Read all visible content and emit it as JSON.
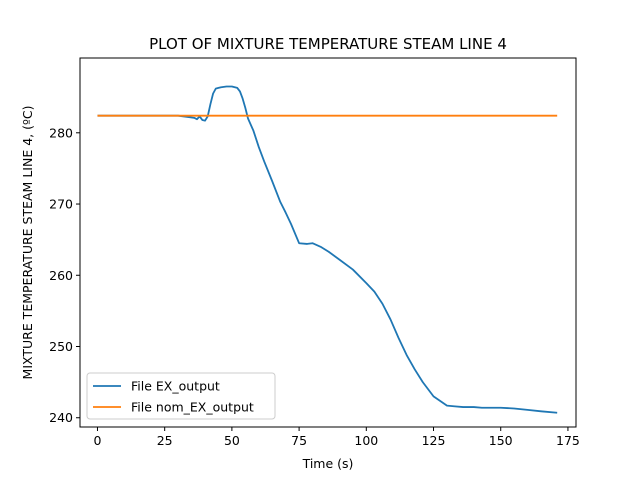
{
  "chart_data": {
    "type": "line",
    "title": "PLOT OF MIXTURE TEMPERATURE STEAM LINE 4",
    "xlabel": "Time (s)",
    "ylabel": "MIXTURE TEMPERATURE STEAM LINE 4, (ºC)",
    "xlim": [
      -6.5,
      178
    ],
    "ylim": [
      238.7,
      290.5
    ],
    "xticks": [
      0,
      25,
      50,
      75,
      100,
      125,
      150,
      175
    ],
    "yticks": [
      240,
      250,
      260,
      270,
      280
    ],
    "grid": false,
    "legend_position": "lower-left",
    "series": [
      {
        "name": "File EX_output",
        "color": "#1f77b4",
        "x": [
          0,
          10,
          20,
          30,
          34,
          36,
          37,
          38,
          39,
          40,
          41,
          42,
          43,
          44,
          45,
          46,
          48,
          50,
          52,
          53,
          54,
          55,
          56,
          58,
          60,
          62,
          65,
          68,
          70,
          72,
          75,
          78,
          80,
          83,
          86,
          90,
          95,
          100,
          103,
          106,
          109,
          112,
          115,
          118,
          121,
          125,
          130,
          133,
          136,
          140,
          143,
          146,
          150,
          155,
          160,
          165,
          171
        ],
        "y": [
          282.4,
          282.4,
          282.4,
          282.4,
          282.2,
          282.1,
          281.9,
          282.3,
          281.8,
          281.7,
          282.3,
          284.0,
          285.5,
          286.2,
          286.3,
          286.4,
          286.5,
          286.5,
          286.3,
          285.8,
          284.8,
          283.5,
          282.0,
          280.3,
          278.0,
          276.0,
          273.2,
          270.3,
          268.8,
          267.2,
          264.5,
          264.4,
          264.5,
          264.0,
          263.3,
          262.2,
          260.8,
          258.9,
          257.7,
          256.0,
          253.8,
          251.2,
          248.8,
          246.8,
          245.0,
          243.0,
          241.7,
          241.6,
          241.5,
          241.5,
          241.4,
          241.4,
          241.4,
          241.3,
          241.1,
          240.9,
          240.7
        ]
      },
      {
        "name": "File nom_EX_output",
        "color": "#ff7f0e",
        "x": [
          0,
          171
        ],
        "y": [
          282.4,
          282.4
        ]
      }
    ]
  }
}
